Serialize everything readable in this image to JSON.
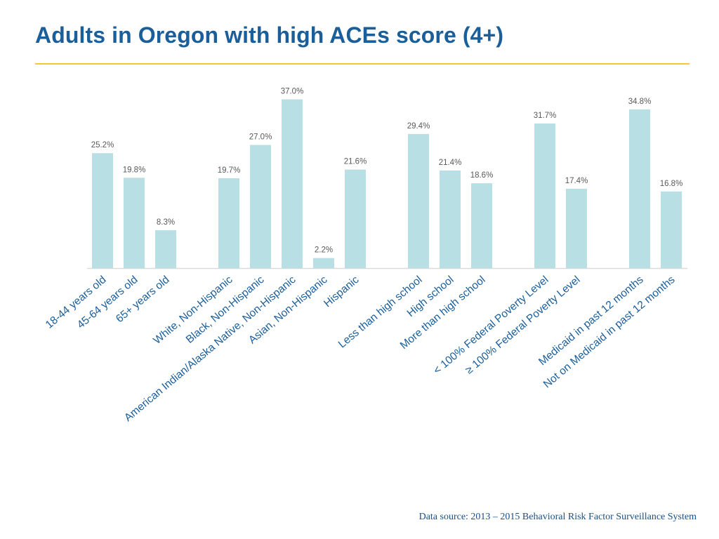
{
  "page": {
    "title": "Adults in Oregon with high ACEs score (4+)",
    "source": "Data source: 2013 – 2015 Behavioral Risk Factor Surveillance System"
  },
  "colors": {
    "title": "#1a5e9a",
    "rule": "#f3c63b",
    "bar": "#b8dfe3",
    "axis": "#d9d9d9",
    "category_label": "#1a5e9a",
    "value_label": "#595959"
  },
  "chart_data": {
    "type": "bar",
    "title": "Adults in Oregon with high ACEs score (4+)",
    "xlabel": "",
    "ylabel": "",
    "ylim": [
      0,
      40
    ],
    "grid": false,
    "legend": "none",
    "value_format": "percent",
    "groups": [
      {
        "categories": [
          "18-44 years old",
          "45-64 years old",
          "65+ years old"
        ],
        "values": [
          25.2,
          19.8,
          8.3
        ]
      },
      {
        "categories": [
          "White, Non-Hispanic",
          "Black, Non-Hispanic",
          "American Indian/Alaska Native, Non-Hispanic",
          "Asian, Non-Hispanic",
          "Hispanic"
        ],
        "values": [
          19.7,
          27.0,
          37.0,
          2.2,
          21.6
        ]
      },
      {
        "categories": [
          "Less than high school",
          "High school",
          "More than high school"
        ],
        "values": [
          29.4,
          21.4,
          18.6
        ]
      },
      {
        "categories": [
          "< 100% Federal Poverty Level",
          "≥ 100% Federal Poverty Level"
        ],
        "values": [
          31.7,
          17.4
        ]
      },
      {
        "categories": [
          "Medicaid in past 12 months",
          "Not on Medicaid in past 12 months"
        ],
        "values": [
          34.8,
          16.8
        ]
      }
    ]
  }
}
